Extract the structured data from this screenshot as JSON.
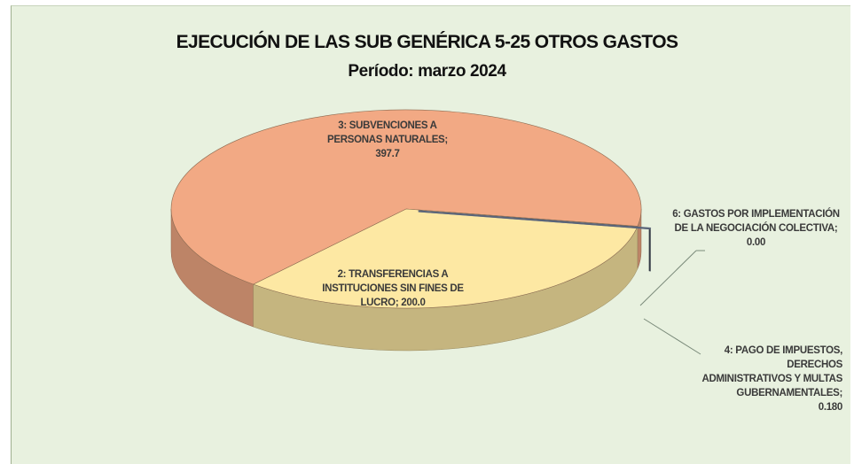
{
  "chart_data": {
    "type": "pie",
    "title": "EJECUCIÓN DE LAS SUB GENÉRICA 5-25 OTROS GASTOS",
    "subtitle": "Período:  marzo 2024",
    "categories": [
      "3: SUBVENCIONES A PERSONAS NATURALES;",
      "2: TRANSFERENCIAS A INSTITUCIONES SIN FINES DE LUCRO;",
      "6: GASTOS POR IMPLEMENTACIÓN DE LA NEGOCIACIÓN COLECTIVA;",
      "4: PAGO DE IMPUESTOS, DERECHOS ADMINISTRATIVOS Y MULTAS GUBERNAMENTALES;"
    ],
    "values": [
      397.7,
      200.0,
      0.0,
      0.18
    ],
    "value_labels": [
      "397.7",
      "200.0",
      "0.00",
      "0.180"
    ],
    "colors": [
      "#f2a984",
      "#fde8a3",
      "#8090a8",
      "#5a6478"
    ]
  }
}
